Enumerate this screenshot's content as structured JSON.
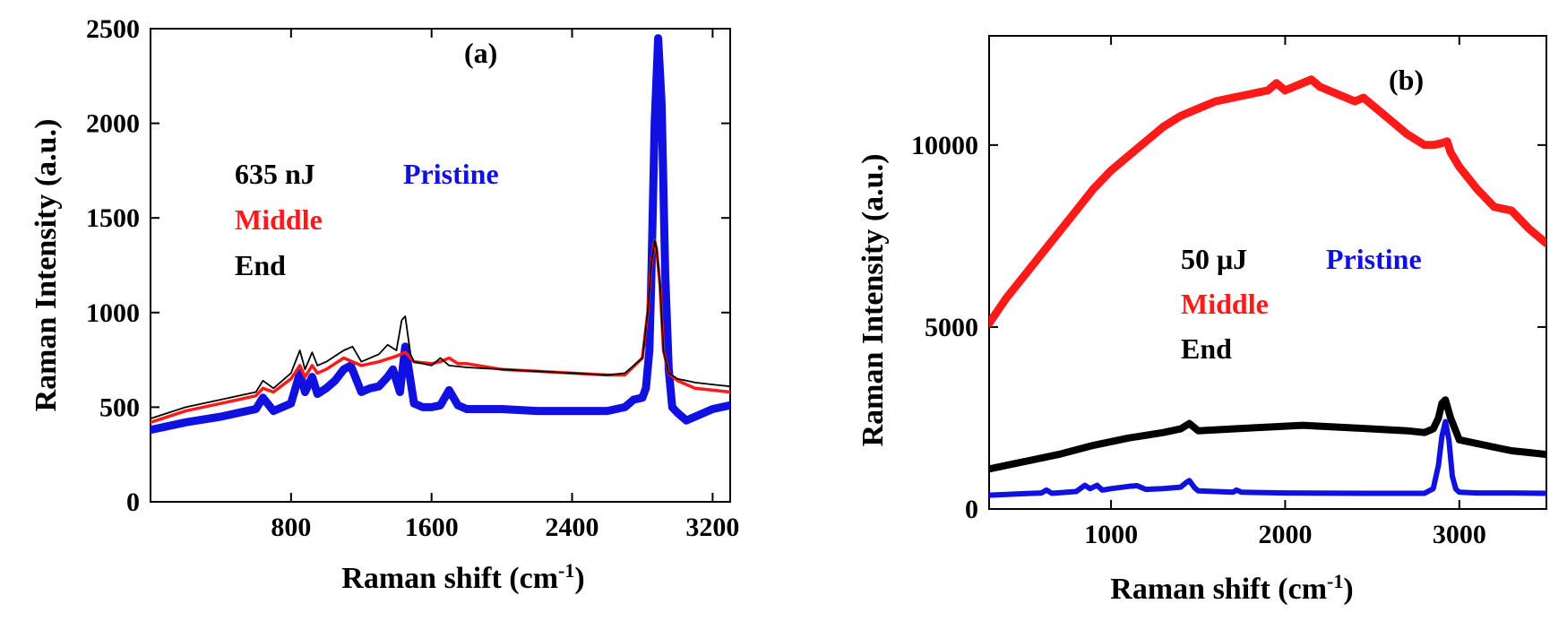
{
  "chart_data": [
    {
      "type": "line",
      "panel_label": "(a)",
      "xlabel_main": "Raman shift (cm",
      "xlabel_sup": "-1",
      "xlabel_end": ")",
      "ylabel": "Raman Intensity (a.u.)",
      "xlim": [
        0,
        3300
      ],
      "ylim": [
        0,
        2500
      ],
      "xticks": [
        800,
        1600,
        2400,
        3200
      ],
      "yticks": [
        0,
        500,
        1000,
        1500,
        2000,
        2500
      ],
      "legend_energy": "635 nJ",
      "series": [
        {
          "name": "Pristine",
          "color": "#1010e0",
          "x": [
            0,
            200,
            400,
            500,
            600,
            640,
            700,
            800,
            850,
            880,
            920,
            950,
            1000,
            1050,
            1100,
            1140,
            1200,
            1250,
            1300,
            1350,
            1380,
            1420,
            1450,
            1500,
            1550,
            1600,
            1650,
            1700,
            1750,
            1800,
            2000,
            2200,
            2400,
            2600,
            2700,
            2750,
            2800,
            2820,
            2840,
            2850,
            2870,
            2890,
            2910,
            2930,
            2950,
            2970,
            3000,
            3050,
            3100,
            3150,
            3200,
            3300
          ],
          "y": [
            380,
            420,
            450,
            470,
            490,
            550,
            480,
            520,
            680,
            580,
            660,
            570,
            600,
            640,
            700,
            720,
            580,
            600,
            610,
            660,
            700,
            580,
            820,
            520,
            500,
            500,
            510,
            590,
            510,
            490,
            490,
            480,
            480,
            480,
            500,
            540,
            550,
            600,
            800,
            1150,
            2000,
            2450,
            2100,
            1200,
            700,
            500,
            470,
            430,
            450,
            470,
            490,
            510
          ]
        },
        {
          "name": "Middle",
          "color": "#ff1a1a",
          "x": [
            0,
            200,
            400,
            500,
            600,
            640,
            700,
            800,
            850,
            880,
            920,
            950,
            1000,
            1100,
            1200,
            1300,
            1400,
            1450,
            1500,
            1600,
            1650,
            1700,
            1750,
            1800,
            2000,
            2200,
            2400,
            2600,
            2700,
            2800,
            2830,
            2850,
            2870,
            2880,
            2900,
            2920,
            2950,
            3000,
            3050,
            3100,
            3200,
            3300
          ],
          "y": [
            420,
            480,
            520,
            540,
            560,
            600,
            580,
            650,
            720,
            660,
            720,
            680,
            700,
            760,
            720,
            740,
            770,
            790,
            740,
            730,
            740,
            760,
            730,
            730,
            700,
            690,
            680,
            670,
            670,
            760,
            1000,
            1250,
            1380,
            1340,
            1150,
            800,
            680,
            640,
            620,
            600,
            590,
            580
          ]
        },
        {
          "name": "End",
          "color": "#000000",
          "x": [
            0,
            200,
            400,
            500,
            600,
            640,
            700,
            800,
            850,
            880,
            920,
            950,
            1000,
            1100,
            1150,
            1200,
            1300,
            1350,
            1400,
            1430,
            1450,
            1480,
            1500,
            1600,
            1650,
            1700,
            1800,
            2000,
            2200,
            2400,
            2600,
            2700,
            2800,
            2830,
            2850,
            2870,
            2880,
            2900,
            2920,
            2950,
            3000,
            3050,
            3100,
            3200,
            3300
          ],
          "y": [
            440,
            500,
            540,
            560,
            580,
            640,
            600,
            680,
            800,
            700,
            790,
            720,
            740,
            800,
            820,
            740,
            780,
            830,
            800,
            960,
            980,
            780,
            740,
            720,
            760,
            720,
            710,
            700,
            690,
            680,
            670,
            680,
            760,
            1000,
            1250,
            1380,
            1340,
            1150,
            800,
            680,
            650,
            640,
            630,
            620,
            610
          ]
        }
      ]
    },
    {
      "type": "line",
      "panel_label": "(b)",
      "xlabel_main": "Raman shift (cm",
      "xlabel_sup": "-1",
      "xlabel_end": ")",
      "ylabel": "Raman Intensity (a.u.)",
      "xlim": [
        300,
        3500
      ],
      "ylim": [
        0,
        13000
      ],
      "xticks": [
        1000,
        2000,
        3000
      ],
      "yticks": [
        0,
        5000,
        10000
      ],
      "legend_energy": "50 μJ",
      "series": [
        {
          "name": "Middle",
          "color": "#ff1a1a",
          "x": [
            300,
            400,
            500,
            600,
            700,
            800,
            900,
            1000,
            1100,
            1200,
            1300,
            1400,
            1500,
            1600,
            1700,
            1800,
            1900,
            1950,
            2000,
            2100,
            2150,
            2200,
            2300,
            2400,
            2450,
            2500,
            2600,
            2700,
            2800,
            2850,
            2900,
            2930,
            2950,
            3000,
            3100,
            3200,
            3300,
            3400,
            3500
          ],
          "y": [
            5100,
            5800,
            6400,
            7000,
            7600,
            8200,
            8800,
            9300,
            9700,
            10100,
            10500,
            10800,
            11000,
            11200,
            11300,
            11400,
            11500,
            11700,
            11500,
            11700,
            11800,
            11600,
            11400,
            11200,
            11300,
            11100,
            10700,
            10300,
            10000,
            10000,
            10050,
            10100,
            9800,
            9400,
            8800,
            8300,
            8200,
            7700,
            7300
          ]
        },
        {
          "name": "End",
          "color": "#000000",
          "x": [
            300,
            500,
            700,
            900,
            1100,
            1300,
            1400,
            1450,
            1500,
            1700,
            1900,
            2100,
            2300,
            2500,
            2700,
            2800,
            2850,
            2880,
            2900,
            2920,
            2950,
            3000,
            3100,
            3200,
            3300,
            3400,
            3500
          ],
          "y": [
            1100,
            1300,
            1500,
            1750,
            1950,
            2100,
            2200,
            2350,
            2150,
            2200,
            2250,
            2300,
            2250,
            2200,
            2150,
            2100,
            2200,
            2500,
            2900,
            3000,
            2500,
            1900,
            1800,
            1700,
            1600,
            1550,
            1500
          ]
        },
        {
          "name": "Pristine",
          "color": "#1010e0",
          "x": [
            300,
            500,
            600,
            630,
            660,
            800,
            850,
            880,
            920,
            950,
            1000,
            1100,
            1150,
            1200,
            1300,
            1400,
            1430,
            1450,
            1480,
            1500,
            1700,
            1720,
            1750,
            2000,
            2500,
            2800,
            2850,
            2880,
            2900,
            2920,
            2940,
            2960,
            2980,
            3000,
            3100,
            3300,
            3500
          ],
          "y": [
            380,
            420,
            440,
            520,
            430,
            480,
            650,
            560,
            650,
            520,
            560,
            620,
            640,
            540,
            560,
            600,
            720,
            780,
            580,
            500,
            460,
            520,
            460,
            440,
            430,
            430,
            560,
            1200,
            2000,
            2400,
            1900,
            900,
            550,
            460,
            440,
            440,
            430
          ]
        }
      ]
    }
  ]
}
